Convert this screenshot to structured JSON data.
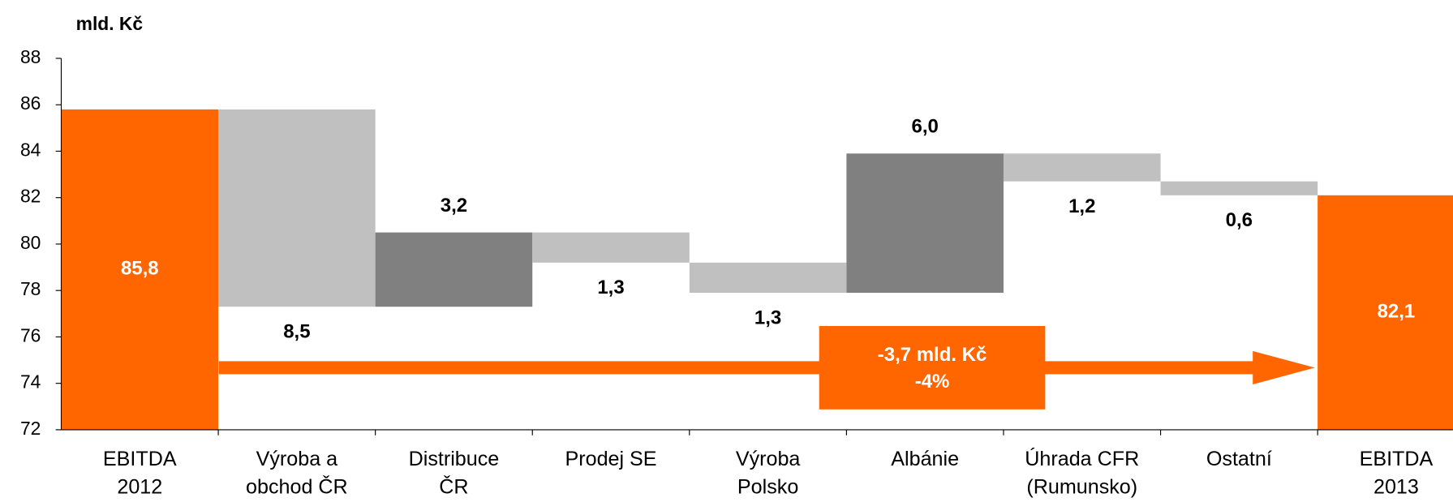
{
  "chart_data": {
    "type": "waterfall",
    "y_label": "mld. Kč",
    "categories": [
      [
        "EBITDA",
        "2012"
      ],
      [
        "Výroba a",
        "obchod ČR"
      ],
      [
        "Distribuce",
        "ČR"
      ],
      [
        "Prodej SE"
      ],
      [
        "Výroba",
        "Polsko"
      ],
      [
        "Albánie"
      ],
      [
        "Úhrada CFR",
        "(Rumunsko)"
      ],
      [
        "Ostatní"
      ],
      [
        "EBITDA",
        "2013"
      ]
    ],
    "measures": [
      "total",
      "relative",
      "relative",
      "relative",
      "relative",
      "relative",
      "relative",
      "relative",
      "total"
    ],
    "values": [
      85.8,
      -8.5,
      3.2,
      -1.3,
      -1.3,
      6.0,
      -1.2,
      -0.6,
      82.1
    ],
    "value_labels": [
      "85,8",
      "8,5",
      "3,2",
      "1,3",
      "1,3",
      "6,0",
      "1,2",
      "0,6",
      "82,1"
    ],
    "colors": {
      "total": "#ff6600",
      "increase": "#808080",
      "decrease": "#c0c0c0"
    },
    "ylim": [
      72,
      88
    ],
    "yticks": [
      72,
      74,
      76,
      78,
      80,
      82,
      84,
      86,
      88
    ],
    "annotation": [
      "-3,7 mld. Kč",
      "-4%"
    ]
  }
}
